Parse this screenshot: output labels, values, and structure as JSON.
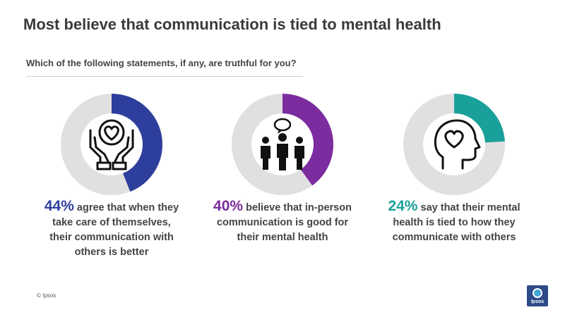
{
  "title": "Most believe that communication is tied to mental health",
  "subtitle": "Which of the following statements, if any, are truthful for you?",
  "colors": {
    "track": "#e0e0e0",
    "blue": "#2e3e9c",
    "purple": "#7b2c9e",
    "teal": "#1aa09a"
  },
  "chart_data": {
    "type": "donut",
    "items": [
      {
        "icon": "heart-in-hands-icon",
        "value": 44,
        "pct_label": "44%",
        "text": " agree that when they take care of themselves, their communication with others is better",
        "color": "#2e3e9c"
      },
      {
        "icon": "people-talking-icon",
        "value": 40,
        "pct_label": "40%",
        "text": " believe that in-person communication is good for their mental health",
        "color": "#7b2c9e"
      },
      {
        "icon": "head-with-heart-icon",
        "value": 24,
        "pct_label": "24%",
        "text": " say that their mental health is tied to how they communicate with others",
        "color": "#1aa09a"
      }
    ]
  },
  "footer": {
    "copyright": "© Ipsos",
    "logo_text": "Ipsos"
  }
}
